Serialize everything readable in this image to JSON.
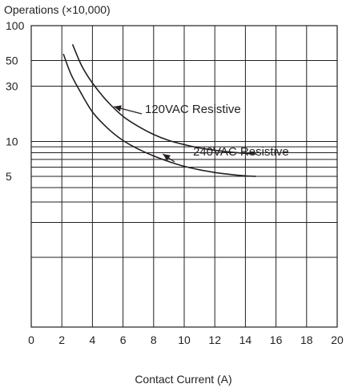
{
  "chart_data": {
    "type": "line",
    "ylabel": "Operations (×10,000)",
    "xlabel": "Contact Current (A)",
    "x_ticks": [
      0,
      2,
      4,
      6,
      8,
      10,
      12,
      14,
      16,
      18,
      20
    ],
    "y_tick_labels": [
      {
        "value": 100,
        "label": "100"
      },
      {
        "value": 50,
        "label": "50"
      },
      {
        "value": 30,
        "label": "30"
      },
      {
        "value": 10,
        "label": "10"
      },
      {
        "value": 5,
        "label": "5"
      }
    ],
    "y_gridlines": [
      100,
      50,
      30,
      10,
      9,
      8,
      7,
      6,
      5,
      4,
      3,
      2,
      1
    ],
    "xlim": [
      0,
      20
    ],
    "ylim": [
      0.25,
      100
    ],
    "yscale": "log",
    "grid": true,
    "series": [
      {
        "name": "120VAC Resistive",
        "x": [
          2.7,
          3.3,
          4.0,
          5.0,
          6.0,
          7.0,
          8.0,
          9.0,
          10.0,
          11.0,
          12.0,
          13.0,
          14.0,
          14.7
        ],
        "y": [
          69,
          45,
          32,
          22,
          16.5,
          13.5,
          11.5,
          10.2,
          9.4,
          8.8,
          8.4,
          8.1,
          7.9,
          7.8
        ]
      },
      {
        "name": "240VAC Resistive",
        "x": [
          2.1,
          2.6,
          3.2,
          4.0,
          5.0,
          6.0,
          7.0,
          8.0,
          9.0,
          10.0,
          11.0,
          12.0,
          13.0,
          14.0,
          14.7
        ],
        "y": [
          57,
          38,
          27,
          18,
          13,
          10.2,
          8.6,
          7.5,
          6.7,
          6.1,
          5.7,
          5.4,
          5.2,
          5.05,
          5.0
        ]
      }
    ],
    "annotations": [
      {
        "text": "120VAC Resistive",
        "series": 0,
        "arrow_to": {
          "x": 5.4,
          "y": 20
        }
      },
      {
        "text": "240VAC Resistive",
        "series": 1,
        "arrow_to": {
          "x": 8.6,
          "y": 7.8
        }
      }
    ]
  },
  "style": {
    "line_color": "#231f20",
    "grid_color": "#231f20",
    "background": "#ffffff"
  }
}
